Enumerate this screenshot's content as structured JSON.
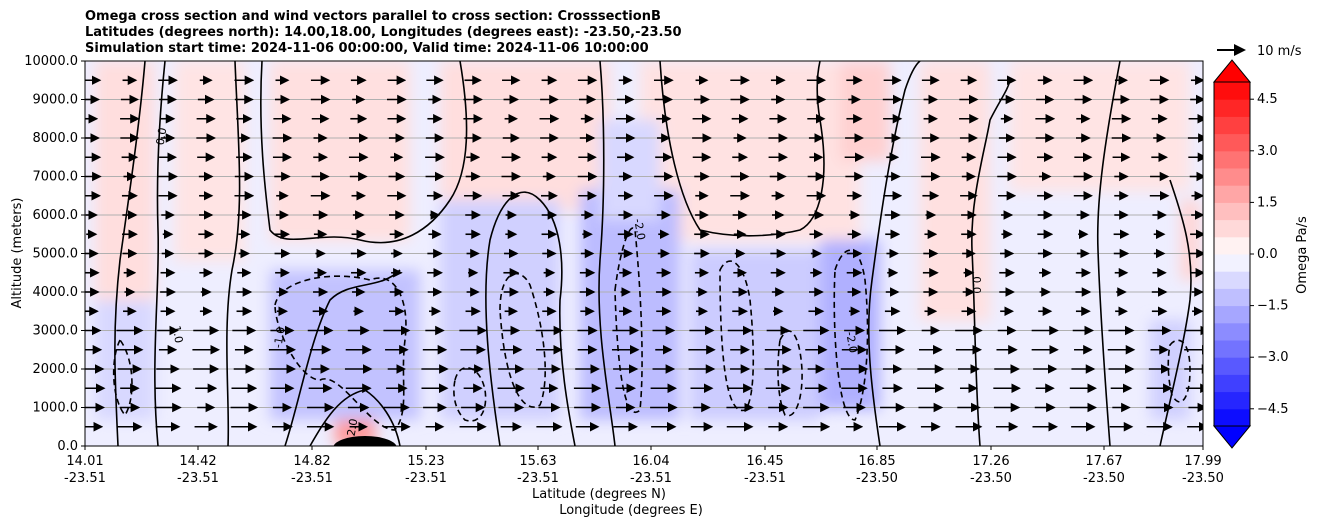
{
  "chart_data": {
    "type": "contour",
    "title_lines": [
      "Omega cross section and wind vectors parallel to cross section: CrosssectionB",
      "Latitudes (degrees north): 14.00,18.00, Longitudes (degrees east): -23.50,-23.50",
      "Simulation start time: 2024-11-06 00:00:00, Valid time: 2024-11-06 10:00:00"
    ],
    "ylabel": "Altitude (meters)",
    "xlabel_lines": [
      "Latitude (degrees N)",
      "Longitude (degrees E)"
    ],
    "ylim": [
      0,
      10000
    ],
    "yticks": [
      0,
      1000,
      2000,
      3000,
      4000,
      5000,
      6000,
      7000,
      8000,
      9000,
      10000
    ],
    "ytick_labels": [
      "0.0",
      "1000.0",
      "2000.0",
      "3000.0",
      "4000.0",
      "5000.0",
      "6000.0",
      "7000.0",
      "8000.0",
      "9000.0",
      "10000.0"
    ],
    "xticks": [
      {
        "lat": "14.01",
        "lon": "-23.51"
      },
      {
        "lat": "14.42",
        "lon": "-23.51"
      },
      {
        "lat": "14.82",
        "lon": "-23.51"
      },
      {
        "lat": "15.23",
        "lon": "-23.51"
      },
      {
        "lat": "15.63",
        "lon": "-23.51"
      },
      {
        "lat": "16.04",
        "lon": "-23.51"
      },
      {
        "lat": "16.45",
        "lon": "-23.51"
      },
      {
        "lat": "16.85",
        "lon": "-23.50"
      },
      {
        "lat": "17.26",
        "lon": "-23.50"
      },
      {
        "lat": "17.67",
        "lon": "-23.50"
      },
      {
        "lat": "17.99",
        "lon": "-23.50"
      }
    ],
    "grid": "horizontal",
    "colorbar": {
      "label": "Omega Pa/s",
      "range": [
        -5.0,
        5.0
      ],
      "step": 0.5,
      "ticks": [
        -4.5,
        -3.0,
        -1.5,
        0.0,
        1.5,
        3.0,
        4.5
      ],
      "tick_labels": [
        "−4.5",
        "−3.0",
        "−1.5",
        "0.0",
        "1.5",
        "3.0",
        "4.5"
      ],
      "extend": "both",
      "colormap": "bwr"
    },
    "quiver_key": "10 m/s",
    "contour_labels": [
      "0.0",
      "1.0",
      "-1.0",
      "-2.0",
      "2.0",
      "-2.0",
      "0.0"
    ],
    "vector_rows_m": [
      500,
      1000,
      1500,
      2000,
      2500,
      3000,
      3500,
      4000,
      4500,
      5000,
      5500,
      6000,
      6500,
      7000,
      7500,
      8000,
      8500,
      9000,
      9500
    ],
    "vector_columns": 30
  }
}
